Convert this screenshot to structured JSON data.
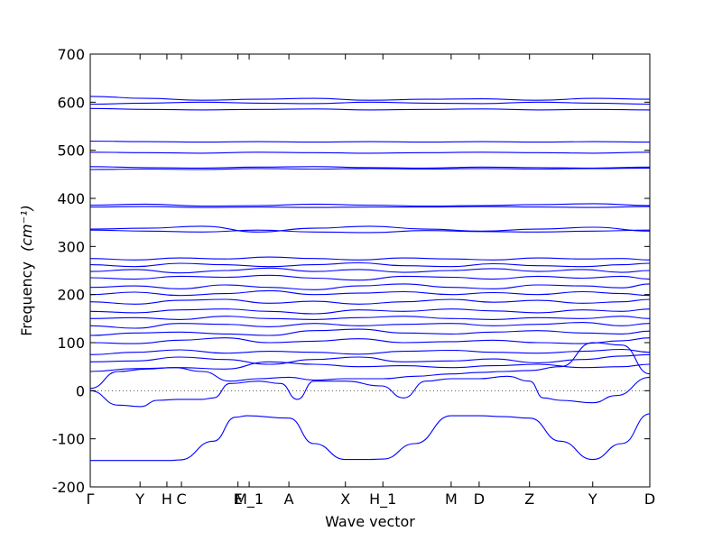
{
  "chart_data": {
    "type": "line",
    "title": "",
    "xlabel": "Wave vector",
    "ylabel": "Frequency",
    "ylabel_unit": "(cm⁻¹)",
    "ylim": [
      -200,
      700
    ],
    "yticks": [
      -200,
      -100,
      0,
      100,
      200,
      300,
      400,
      500,
      600,
      700
    ],
    "xlim": [
      0,
      1
    ],
    "xticks": [
      {
        "label": "Γ",
        "pos": 0.0
      },
      {
        "label": "Y",
        "pos": 0.089
      },
      {
        "label": "H",
        "pos": 0.137
      },
      {
        "label": "C",
        "pos": 0.163
      },
      {
        "label": "E",
        "pos": 0.264
      },
      {
        "label": "M_1",
        "pos": 0.284
      },
      {
        "label": "A",
        "pos": 0.355
      },
      {
        "label": "X",
        "pos": 0.456
      },
      {
        "label": "H_1",
        "pos": 0.523
      },
      {
        "label": "M",
        "pos": 0.645
      },
      {
        "label": "D",
        "pos": 0.695
      },
      {
        "label": "Z",
        "pos": 0.785
      },
      {
        "label": "Y",
        "pos": 0.898
      },
      {
        "label": "D",
        "pos": 1.0
      }
    ],
    "zero_line": true,
    "line_color": "#0000ff",
    "series": [
      {
        "x": [
          0,
          0.05,
          0.09,
          0.14,
          0.16,
          0.22,
          0.26,
          0.28,
          0.355,
          0.4,
          0.456,
          0.5,
          0.523,
          0.58,
          0.645,
          0.695,
          0.74,
          0.785,
          0.84,
          0.898,
          0.95,
          1.0
        ],
        "y": [
          -145,
          -145,
          -145,
          -145,
          -144,
          -105,
          -55,
          -52,
          -57,
          -110,
          -143,
          -143,
          -142,
          -110,
          -52,
          -52,
          -54,
          -57,
          -105,
          -143,
          -110,
          -48
        ]
      },
      {
        "x": [
          0,
          0.05,
          0.09,
          0.12,
          0.16,
          0.2,
          0.22,
          0.25,
          0.3,
          0.34,
          0.37,
          0.4,
          0.456,
          0.52,
          0.56,
          0.6,
          0.645,
          0.695,
          0.745,
          0.785,
          0.81,
          0.84,
          0.898,
          0.94,
          1.0
        ],
        "y": [
          0,
          -30,
          -33,
          -20,
          -18,
          -18,
          -15,
          15,
          20,
          15,
          -18,
          20,
          20,
          10,
          -15,
          20,
          25,
          25,
          30,
          20,
          -15,
          -20,
          -25,
          -10,
          28
        ]
      },
      {
        "x": [
          0,
          0.05,
          0.1,
          0.15,
          0.2,
          0.25,
          0.3,
          0.355,
          0.4,
          0.456,
          0.523,
          0.58,
          0.645,
          0.695,
          0.74,
          0.785,
          0.84,
          0.898,
          0.95,
          1.0
        ],
        "y": [
          5,
          40,
          45,
          48,
          40,
          20,
          25,
          28,
          22,
          25,
          25,
          30,
          35,
          38,
          40,
          42,
          50,
          100,
          95,
          35
        ]
      },
      {
        "x": [
          0,
          0.08,
          0.16,
          0.24,
          0.32,
          0.4,
          0.48,
          0.56,
          0.645,
          0.72,
          0.8,
          0.88,
          0.95,
          1.0
        ],
        "y": [
          40,
          46,
          48,
          45,
          60,
          55,
          50,
          52,
          48,
          52,
          55,
          48,
          50,
          55
        ]
      },
      {
        "x": [
          0,
          0.08,
          0.16,
          0.24,
          0.32,
          0.4,
          0.48,
          0.56,
          0.645,
          0.72,
          0.8,
          0.88,
          0.95,
          1.0
        ],
        "y": [
          60,
          62,
          70,
          65,
          55,
          65,
          70,
          60,
          62,
          66,
          58,
          65,
          72,
          75
        ]
      },
      {
        "x": [
          0,
          0.08,
          0.16,
          0.24,
          0.32,
          0.4,
          0.48,
          0.56,
          0.645,
          0.72,
          0.8,
          0.88,
          0.95,
          1.0
        ],
        "y": [
          75,
          80,
          85,
          78,
          82,
          80,
          76,
          82,
          84,
          80,
          78,
          82,
          86,
          80
        ]
      },
      {
        "x": [
          0,
          0.08,
          0.16,
          0.24,
          0.32,
          0.4,
          0.48,
          0.56,
          0.645,
          0.72,
          0.8,
          0.88,
          0.95,
          1.0
        ],
        "y": [
          100,
          98,
          105,
          110,
          100,
          103,
          108,
          100,
          102,
          105,
          100,
          98,
          104,
          110
        ]
      },
      {
        "x": [
          0,
          0.08,
          0.16,
          0.24,
          0.32,
          0.4,
          0.48,
          0.56,
          0.645,
          0.72,
          0.8,
          0.88,
          0.95,
          1.0
        ],
        "y": [
          115,
          120,
          122,
          118,
          115,
          125,
          128,
          120,
          118,
          122,
          125,
          120,
          118,
          124
        ]
      },
      {
        "x": [
          0,
          0.08,
          0.16,
          0.24,
          0.32,
          0.4,
          0.48,
          0.56,
          0.645,
          0.72,
          0.8,
          0.88,
          0.95,
          1.0
        ],
        "y": [
          135,
          130,
          140,
          138,
          133,
          140,
          135,
          138,
          140,
          135,
          138,
          142,
          135,
          140
        ]
      },
      {
        "x": [
          0,
          0.08,
          0.16,
          0.24,
          0.32,
          0.4,
          0.48,
          0.56,
          0.645,
          0.72,
          0.8,
          0.88,
          0.95,
          1.0
        ],
        "y": [
          150,
          152,
          148,
          155,
          150,
          148,
          152,
          155,
          150,
          148,
          152,
          150,
          155,
          150
        ]
      },
      {
        "x": [
          0,
          0.08,
          0.16,
          0.24,
          0.32,
          0.4,
          0.48,
          0.56,
          0.645,
          0.72,
          0.8,
          0.88,
          0.95,
          1.0
        ],
        "y": [
          165,
          162,
          168,
          170,
          165,
          160,
          168,
          165,
          170,
          166,
          162,
          168,
          165,
          170
        ]
      },
      {
        "x": [
          0,
          0.08,
          0.16,
          0.24,
          0.32,
          0.4,
          0.48,
          0.56,
          0.645,
          0.72,
          0.8,
          0.88,
          0.95,
          1.0
        ],
        "y": [
          185,
          180,
          188,
          190,
          182,
          186,
          180,
          185,
          190,
          184,
          188,
          182,
          185,
          190
        ]
      },
      {
        "x": [
          0,
          0.08,
          0.16,
          0.24,
          0.32,
          0.4,
          0.48,
          0.56,
          0.645,
          0.72,
          0.8,
          0.88,
          0.95,
          1.0
        ],
        "y": [
          200,
          205,
          198,
          202,
          208,
          200,
          203,
          206,
          200,
          204,
          200,
          206,
          202,
          198
        ]
      },
      {
        "x": [
          0,
          0.08,
          0.16,
          0.24,
          0.32,
          0.4,
          0.48,
          0.56,
          0.645,
          0.72,
          0.8,
          0.88,
          0.95,
          1.0
        ],
        "y": [
          215,
          218,
          212,
          220,
          215,
          210,
          218,
          222,
          215,
          212,
          220,
          218,
          214,
          222
        ]
      },
      {
        "x": [
          0,
          0.08,
          0.16,
          0.24,
          0.32,
          0.4,
          0.48,
          0.56,
          0.645,
          0.72,
          0.8,
          0.88,
          0.95,
          1.0
        ],
        "y": [
          235,
          232,
          238,
          236,
          240,
          234,
          230,
          238,
          236,
          232,
          238,
          234,
          238,
          232
        ]
      },
      {
        "x": [
          0,
          0.08,
          0.16,
          0.24,
          0.32,
          0.4,
          0.48,
          0.56,
          0.645,
          0.72,
          0.8,
          0.88,
          0.95,
          1.0
        ],
        "y": [
          248,
          252,
          245,
          250,
          255,
          248,
          252,
          246,
          250,
          254,
          248,
          252,
          246,
          250
        ]
      },
      {
        "x": [
          0,
          0.08,
          0.16,
          0.24,
          0.32,
          0.4,
          0.48,
          0.56,
          0.645,
          0.72,
          0.8,
          0.88,
          0.95,
          1.0
        ],
        "y": [
          262,
          258,
          265,
          262,
          258,
          262,
          266,
          260,
          258,
          264,
          260,
          258,
          262,
          265
        ]
      },
      {
        "x": [
          0,
          0.08,
          0.16,
          0.24,
          0.32,
          0.4,
          0.48,
          0.56,
          0.645,
          0.72,
          0.8,
          0.88,
          0.95,
          1.0
        ],
        "y": [
          275,
          272,
          276,
          274,
          278,
          275,
          272,
          276,
          274,
          272,
          276,
          274,
          275,
          272
        ]
      },
      {
        "x": [
          0,
          0.1,
          0.2,
          0.3,
          0.4,
          0.5,
          0.6,
          0.7,
          0.8,
          0.9,
          1.0
        ],
        "y": [
          336,
          338,
          342,
          330,
          338,
          342,
          336,
          332,
          336,
          340,
          332
        ]
      },
      {
        "x": [
          0,
          0.1,
          0.2,
          0.3,
          0.4,
          0.5,
          0.6,
          0.7,
          0.8,
          0.9,
          1.0
        ],
        "y": [
          334,
          332,
          330,
          334,
          330,
          329,
          333,
          331,
          330,
          332,
          334
        ]
      },
      {
        "x": [
          0,
          0.1,
          0.2,
          0.3,
          0.4,
          0.5,
          0.6,
          0.7,
          0.8,
          0.9,
          1.0
        ],
        "y": [
          386,
          388,
          384,
          385,
          388,
          386,
          384,
          385,
          387,
          389,
          385
        ]
      },
      {
        "x": [
          0,
          0.1,
          0.2,
          0.3,
          0.4,
          0.5,
          0.6,
          0.7,
          0.8,
          0.9,
          1.0
        ],
        "y": [
          382,
          383,
          381,
          382,
          381,
          382,
          382,
          383,
          382,
          381,
          383
        ]
      },
      {
        "x": [
          0,
          0.1,
          0.2,
          0.3,
          0.4,
          0.5,
          0.6,
          0.7,
          0.8,
          0.9,
          1.0
        ],
        "y": [
          466,
          464,
          463,
          465,
          466,
          464,
          463,
          465,
          464,
          463,
          465
        ]
      },
      {
        "x": [
          0,
          0.1,
          0.2,
          0.3,
          0.4,
          0.5,
          0.6,
          0.7,
          0.8,
          0.9,
          1.0
        ],
        "y": [
          460,
          461,
          460,
          462,
          461,
          462,
          461,
          462,
          461,
          462,
          463
        ]
      },
      {
        "x": [
          0,
          0.1,
          0.2,
          0.3,
          0.4,
          0.5,
          0.6,
          0.7,
          0.8,
          0.9,
          1.0
        ],
        "y": [
          496,
          495,
          494,
          496,
          495,
          494,
          495,
          496,
          495,
          494,
          496
        ]
      },
      {
        "x": [
          0,
          0.1,
          0.2,
          0.3,
          0.4,
          0.5,
          0.6,
          0.7,
          0.8,
          0.9,
          1.0
        ],
        "y": [
          519,
          518,
          517,
          518,
          517,
          518,
          517,
          518,
          517,
          518,
          517
        ]
      },
      {
        "x": [
          0,
          0.1,
          0.2,
          0.3,
          0.4,
          0.5,
          0.6,
          0.7,
          0.8,
          0.9,
          1.0
        ],
        "y": [
          587,
          585,
          584,
          585,
          586,
          584,
          585,
          586,
          584,
          585,
          584
        ]
      },
      {
        "x": [
          0,
          0.1,
          0.2,
          0.3,
          0.4,
          0.5,
          0.6,
          0.7,
          0.8,
          0.9,
          1.0
        ],
        "y": [
          596,
          598,
          600,
          598,
          597,
          600,
          598,
          597,
          600,
          598,
          596
        ]
      },
      {
        "x": [
          0,
          0.1,
          0.2,
          0.3,
          0.4,
          0.5,
          0.6,
          0.7,
          0.8,
          0.9,
          1.0
        ],
        "y": [
          612,
          608,
          604,
          606,
          608,
          604,
          606,
          607,
          604,
          608,
          606
        ]
      }
    ]
  }
}
